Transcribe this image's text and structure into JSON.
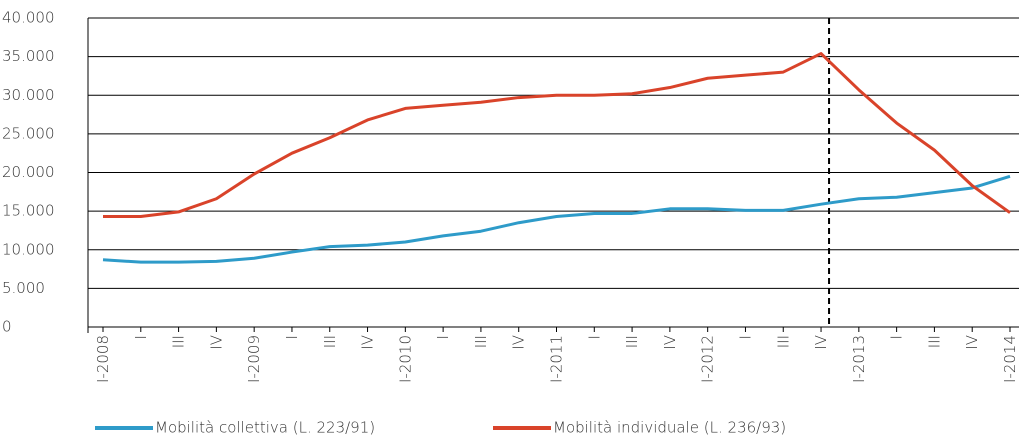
{
  "chart_data": {
    "type": "line",
    "categories": [
      "I-2008",
      "I",
      "III",
      "IV",
      "I-2009",
      "I",
      "III",
      "IV",
      "I-2010",
      "I",
      "III",
      "IV",
      "I-2011",
      "I",
      "III",
      "IV",
      "I-2012",
      "I",
      "III",
      "IV",
      "I-2013",
      "I",
      "III",
      "IV",
      "I-2014"
    ],
    "series": [
      {
        "name": "Mobilità collettiva (L. 223/91)",
        "color": "#2e9bc9",
        "values": [
          8700,
          8400,
          8400,
          8500,
          8900,
          9700,
          10400,
          10600,
          11000,
          11800,
          12400,
          13500,
          14300,
          14700,
          14700,
          15300,
          15300,
          15100,
          15100,
          15900,
          16600,
          16800,
          17400,
          18000,
          19500
        ]
      },
      {
        "name": "Mobilità individuale (L. 236/93)",
        "color": "#d9432a",
        "values": [
          14300,
          14300,
          14900,
          16600,
          19800,
          22500,
          24500,
          26800,
          28300,
          28700,
          29100,
          29700,
          30000,
          30000,
          30200,
          31000,
          32200,
          32600,
          33000,
          35400,
          30700,
          26400,
          22900,
          18300,
          14800
        ]
      }
    ],
    "ylim": [
      0,
      40000
    ],
    "yticks": [
      0,
      {
        "value": 5000,
        "label": "5.000"
      },
      {
        "value": 10000,
        "label": "10.000"
      },
      {
        "value": 15000,
        "label": "15.000"
      },
      {
        "value": 20000,
        "label": "20.000"
      },
      {
        "value": 25000,
        "label": "25.000"
      },
      {
        "value": 30000,
        "label": "30.000"
      },
      {
        "value": 35000,
        "label": "35.000"
      },
      {
        "value": 40000,
        "label": "40.000"
      }
    ],
    "grid": true
  }
}
